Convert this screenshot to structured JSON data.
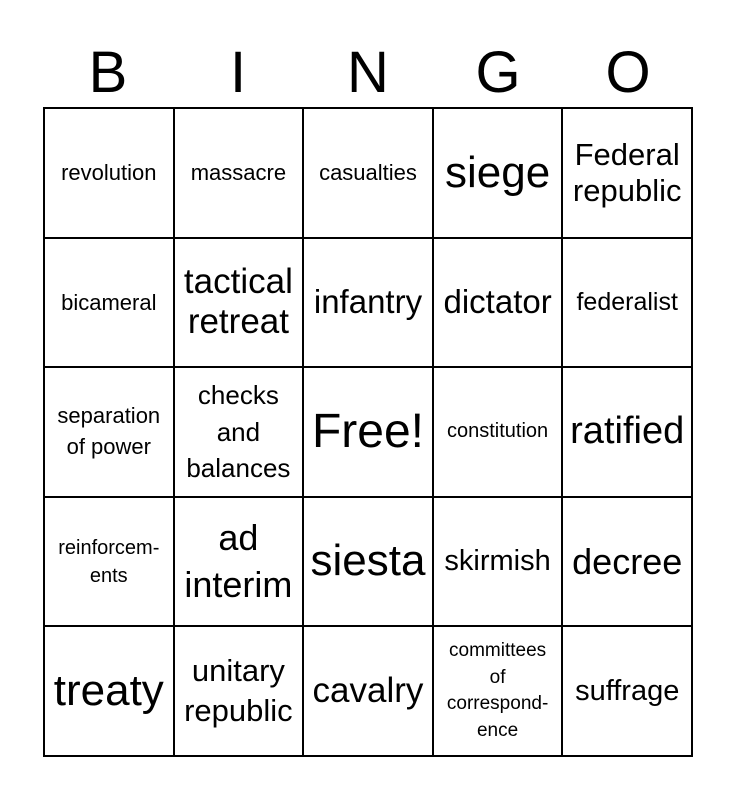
{
  "header": [
    "B",
    "I",
    "N",
    "G",
    "O"
  ],
  "cells": [
    "revolution",
    "massacre",
    "casualties",
    "siege",
    "Federal\nrepublic",
    "bicameral",
    "tactical\nretreat",
    "infantry",
    "dictator",
    "federalist",
    "separation\nof power",
    "checks\nand\nbalances",
    "Free!",
    "constitution",
    "ratified",
    "reinforcem-\nents",
    "ad\ninterim",
    "siesta",
    "skirmish",
    "decree",
    "treaty",
    "unitary\nrepublic",
    "cavalry",
    "committees\nof\ncorrespond-\nence",
    "suffrage"
  ]
}
